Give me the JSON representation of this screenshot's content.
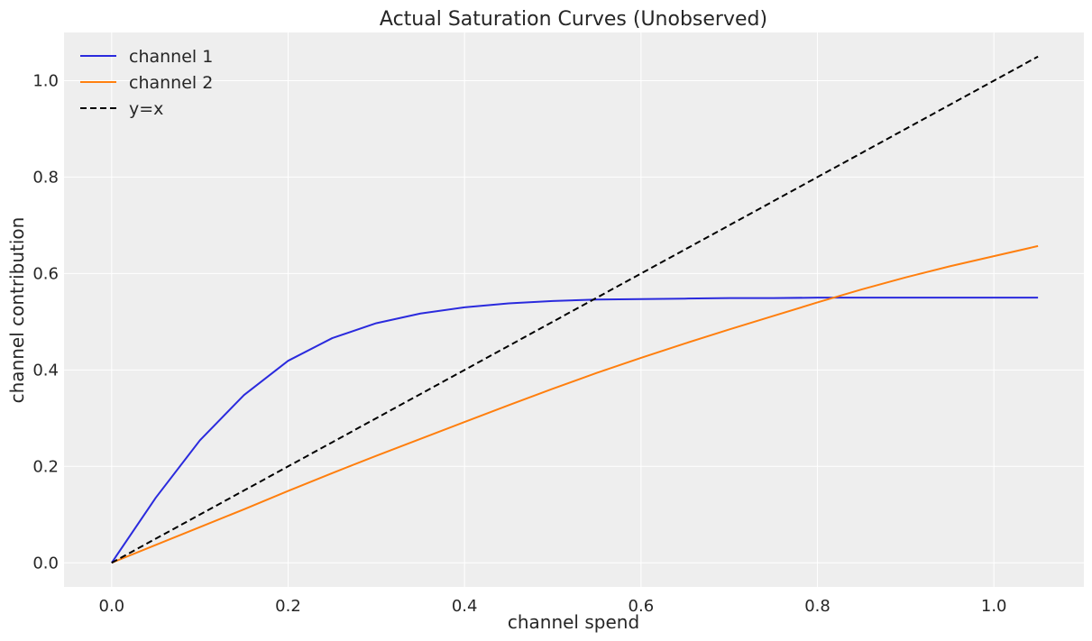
{
  "chart_data": {
    "type": "line",
    "title": "Actual Saturation Curves (Unobserved)",
    "xlabel": "channel spend",
    "ylabel": "channel contribution",
    "xlim": [
      -0.054,
      1.102
    ],
    "ylim": [
      -0.05,
      1.1
    ],
    "xticks": [
      0.0,
      0.2,
      0.4,
      0.6,
      0.8,
      1.0
    ],
    "yticks": [
      0.0,
      0.2,
      0.4,
      0.6,
      0.8,
      1.0
    ],
    "xtick_labels": [
      "0.0",
      "0.2",
      "0.4",
      "0.6",
      "0.8",
      "1.0"
    ],
    "ytick_labels": [
      "0.0",
      "0.2",
      "0.4",
      "0.6",
      "0.8",
      "1.0"
    ],
    "grid": true,
    "legend_position": "top-left",
    "x": [
      0.0,
      0.05,
      0.1,
      0.15,
      0.2,
      0.25,
      0.3,
      0.35,
      0.4,
      0.45,
      0.5,
      0.55,
      0.6,
      0.65,
      0.7,
      0.75,
      0.8,
      0.85,
      0.9,
      0.95,
      1.0,
      1.05
    ],
    "series": [
      {
        "name": "channel 1",
        "color": "#2a2add",
        "dash": "solid",
        "values": [
          0.0,
          0.135,
          0.254,
          0.348,
          0.419,
          0.466,
          0.497,
          0.517,
          0.53,
          0.538,
          0.543,
          0.546,
          0.547,
          0.548,
          0.549,
          0.549,
          0.55,
          0.55,
          0.55,
          0.55,
          0.55,
          0.55
        ]
      },
      {
        "name": "channel 2",
        "color": "#ff7f0e",
        "dash": "solid",
        "values": [
          0.0,
          0.037,
          0.074,
          0.111,
          0.149,
          0.186,
          0.222,
          0.257,
          0.292,
          0.327,
          0.361,
          0.394,
          0.425,
          0.455,
          0.484,
          0.512,
          0.54,
          0.567,
          0.592,
          0.615,
          0.636,
          0.657
        ]
      },
      {
        "name": "y=x",
        "color": "#000000",
        "dash": "dashed",
        "values": [
          0.0,
          0.05,
          0.1,
          0.15,
          0.2,
          0.25,
          0.3,
          0.35,
          0.4,
          0.45,
          0.5,
          0.55,
          0.6,
          0.65,
          0.7,
          0.75,
          0.8,
          0.85,
          0.9,
          0.95,
          1.0,
          1.05
        ]
      }
    ]
  }
}
